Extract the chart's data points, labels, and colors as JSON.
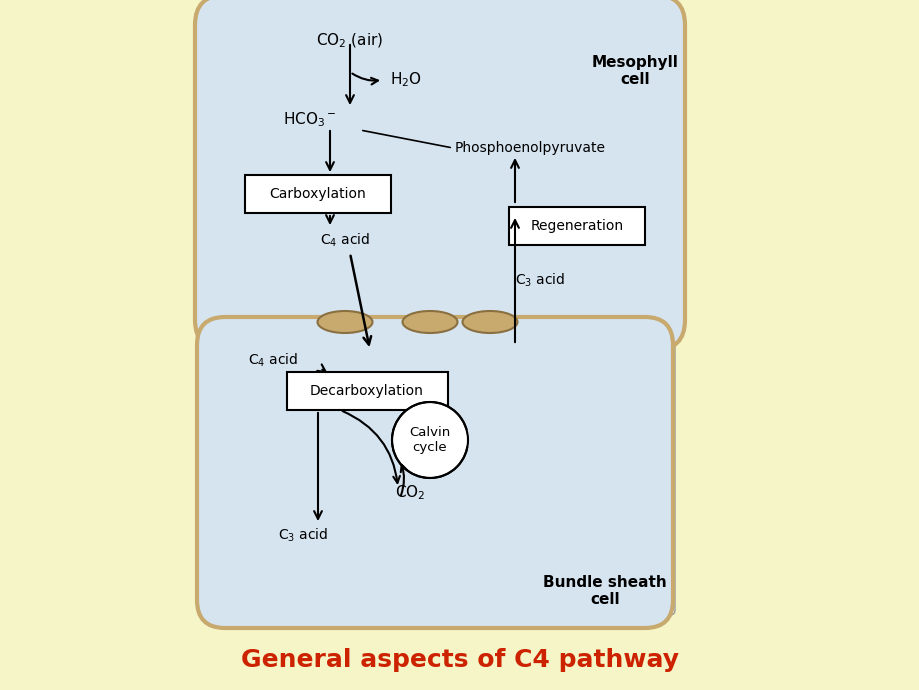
{
  "bg_color": "#f5f5c8",
  "diagram_bg": "#ffffff",
  "cell_fill": "#d6e4f0",
  "cell_edge": "#c8a96e",
  "title": "General aspects of C4 pathway",
  "title_color": "#cc2200",
  "title_fontsize": 18,
  "title_bold": true,
  "mesophyll_label": "Mesophyll\ncell",
  "bundle_label": "Bundle sheath\ncell",
  "co2_air": "CO$_2$ (air)",
  "h2o": "H$_2$O",
  "hco3": "HCO$_3$$^-$",
  "phosphoenolpyruvate": "Phosphoenolpyruvate",
  "carboxylation": "Carboxylation",
  "regeneration": "Regeneration",
  "c4_acid_meso": "C$_4$ acid",
  "c3_acid_meso": "C$_3$ acid",
  "c4_acid_bundle": "C$_4$ acid",
  "decarboxylation": "Decarboxylation",
  "calvin_cycle": "Calvin\ncycle",
  "co2_bundle": "CO$_2$",
  "c3_acid_bundle": "C$_3$ acid"
}
